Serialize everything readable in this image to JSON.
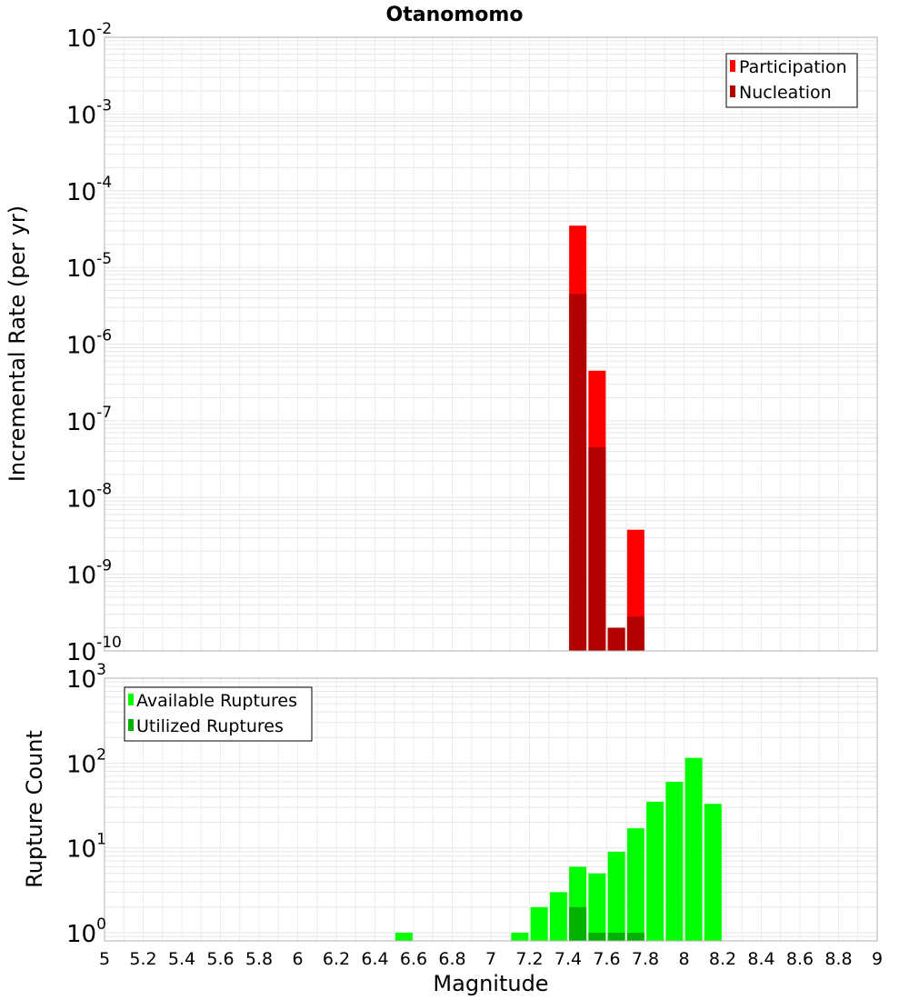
{
  "chart_data": [
    {
      "type": "bar",
      "title": "Otanomomo",
      "xlabel": "",
      "ylabel": "Incremental Rate (per yr)",
      "xlim": [
        5,
        9
      ],
      "ylim": [
        1e-10,
        0.01
      ],
      "yscale": "log",
      "grid": true,
      "legend_position": "top-right",
      "yticks": [
        {
          "base": "10",
          "exp": "-10",
          "value": 1e-10
        },
        {
          "base": "10",
          "exp": "-9",
          "value": 1e-09
        },
        {
          "base": "10",
          "exp": "-8",
          "value": 1e-08
        },
        {
          "base": "10",
          "exp": "-7",
          "value": 1e-07
        },
        {
          "base": "10",
          "exp": "-6",
          "value": 1e-06
        },
        {
          "base": "10",
          "exp": "-5",
          "value": 1e-05
        },
        {
          "base": "10",
          "exp": "-4",
          "value": 0.0001
        },
        {
          "base": "10",
          "exp": "-3",
          "value": 0.001
        },
        {
          "base": "10",
          "exp": "-2",
          "value": 0.01
        }
      ],
      "series": [
        {
          "name": "Participation",
          "color": "#ff0000",
          "x": [
            7.45,
            7.55,
            7.65,
            7.75
          ],
          "values": [
            3.5e-05,
            4.5e-07,
            2e-10,
            3.8e-09
          ]
        },
        {
          "name": "Nucleation",
          "color": "#b20000",
          "x": [
            7.45,
            7.55,
            7.65,
            7.75
          ],
          "values": [
            4.5e-06,
            4.5e-08,
            2e-10,
            2.8e-10
          ]
        }
      ]
    },
    {
      "type": "bar",
      "title": "",
      "xlabel": "Magnitude",
      "ylabel": "Rupture Count",
      "xlim": [
        5,
        9
      ],
      "ylim": [
        0.8,
        1000
      ],
      "yscale": "log",
      "grid": true,
      "legend_position": "top-left",
      "yticks": [
        {
          "base": "10",
          "exp": "0",
          "value": 1
        },
        {
          "base": "10",
          "exp": "1",
          "value": 10
        },
        {
          "base": "10",
          "exp": "2",
          "value": 100
        },
        {
          "base": "10",
          "exp": "3",
          "value": 1000
        }
      ],
      "xticks": [
        "5",
        "5.2",
        "5.4",
        "5.6",
        "5.8",
        "6",
        "6.2",
        "6.4",
        "6.6",
        "6.8",
        "7",
        "7.2",
        "7.4",
        "7.6",
        "7.8",
        "8",
        "8.2",
        "8.4",
        "8.6",
        "8.8",
        "9"
      ],
      "series": [
        {
          "name": "Available Ruptures",
          "color": "#00ff00",
          "x": [
            6.55,
            7.15,
            7.25,
            7.35,
            7.45,
            7.55,
            7.65,
            7.75,
            7.85,
            7.95,
            8.05,
            8.15
          ],
          "values": [
            1,
            1,
            2,
            3,
            6,
            5,
            9,
            17,
            35,
            60,
            115,
            33
          ]
        },
        {
          "name": "Utilized Ruptures",
          "color": "#00b200",
          "x": [
            7.45,
            7.55,
            7.65,
            7.75
          ],
          "values": [
            2,
            1,
            1,
            1
          ]
        }
      ]
    }
  ]
}
